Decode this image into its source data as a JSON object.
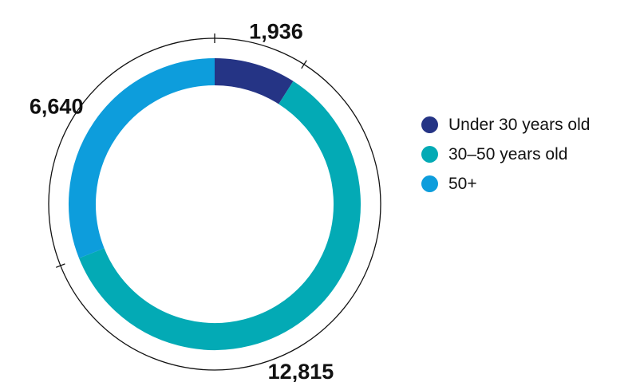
{
  "chart_data": {
    "type": "pie",
    "variant": "donut",
    "categories": [
      "Under 30 years old",
      "30–50 years old",
      "50+"
    ],
    "values": [
      1936,
      12815,
      6640
    ],
    "value_labels": [
      "1,936",
      "12,815",
      "6,640"
    ],
    "colors": [
      "#253485",
      "#03aab5",
      "#0d9ddc"
    ],
    "title": "",
    "legend_position": "right"
  }
}
